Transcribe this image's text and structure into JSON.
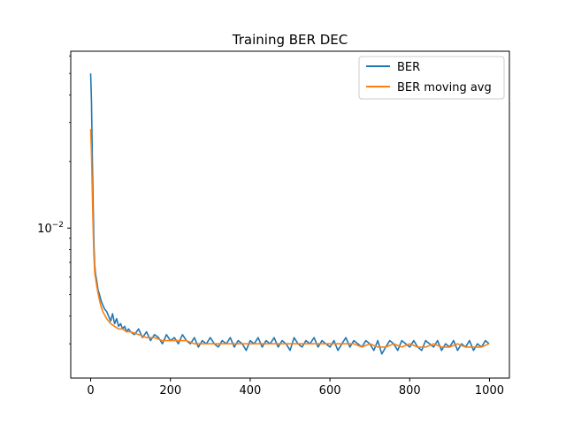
{
  "chart_data": {
    "type": "line",
    "title": "Training BER DEC",
    "xlabel": "",
    "ylabel": "",
    "xlim": [
      -50,
      1050
    ],
    "ylim": [
      0.0021,
      0.063
    ],
    "y_scale": "log",
    "x_ticks": [
      0,
      200,
      400,
      600,
      800,
      1000
    ],
    "x_tick_labels": [
      "0",
      "200",
      "400",
      "600",
      "800",
      "1000"
    ],
    "y_ticks": [
      0.01
    ],
    "y_tick_label_base": "10",
    "y_tick_label_exp": "−2",
    "grid": false,
    "legend_position": "top-right",
    "series": [
      {
        "name": "BER",
        "color": "#1f77b4",
        "x": [
          0,
          2,
          4,
          6,
          8,
          10,
          12,
          15,
          18,
          22,
          26,
          30,
          35,
          40,
          45,
          50,
          55,
          60,
          65,
          70,
          75,
          80,
          85,
          90,
          95,
          100,
          110,
          120,
          130,
          140,
          150,
          160,
          170,
          180,
          190,
          200,
          210,
          220,
          230,
          240,
          250,
          260,
          270,
          280,
          290,
          300,
          310,
          320,
          330,
          340,
          350,
          360,
          370,
          380,
          390,
          400,
          410,
          420,
          430,
          440,
          450,
          460,
          470,
          480,
          490,
          500,
          510,
          520,
          530,
          540,
          550,
          560,
          570,
          580,
          590,
          600,
          610,
          620,
          630,
          640,
          650,
          660,
          670,
          680,
          690,
          700,
          710,
          720,
          730,
          740,
          750,
          760,
          770,
          780,
          790,
          800,
          810,
          820,
          830,
          840,
          850,
          860,
          870,
          880,
          890,
          900,
          910,
          920,
          930,
          940,
          950,
          960,
          970,
          980,
          990,
          999
        ],
        "y": [
          0.05,
          0.038,
          0.022,
          0.013,
          0.0085,
          0.0068,
          0.0062,
          0.0058,
          0.0053,
          0.005,
          0.0047,
          0.0045,
          0.0043,
          0.0042,
          0.004,
          0.0038,
          0.0041,
          0.0037,
          0.0039,
          0.0036,
          0.0037,
          0.0035,
          0.0036,
          0.0034,
          0.0035,
          0.0034,
          0.0033,
          0.0035,
          0.0032,
          0.0034,
          0.0031,
          0.0033,
          0.0032,
          0.003,
          0.0033,
          0.0031,
          0.0032,
          0.003,
          0.0033,
          0.0031,
          0.003,
          0.0032,
          0.0029,
          0.0031,
          0.003,
          0.0032,
          0.003,
          0.0029,
          0.0031,
          0.003,
          0.0032,
          0.0029,
          0.0031,
          0.003,
          0.0028,
          0.0031,
          0.003,
          0.0032,
          0.0029,
          0.0031,
          0.003,
          0.0032,
          0.0029,
          0.0031,
          0.003,
          0.0028,
          0.0032,
          0.003,
          0.0029,
          0.0031,
          0.003,
          0.0032,
          0.0029,
          0.0031,
          0.003,
          0.0029,
          0.0031,
          0.0028,
          0.003,
          0.0032,
          0.0029,
          0.0031,
          0.003,
          0.0029,
          0.0031,
          0.003,
          0.0028,
          0.0031,
          0.0027,
          0.0029,
          0.0031,
          0.003,
          0.0028,
          0.0031,
          0.003,
          0.0029,
          0.0031,
          0.0029,
          0.0028,
          0.0031,
          0.003,
          0.0029,
          0.0031,
          0.0028,
          0.003,
          0.0029,
          0.0031,
          0.0028,
          0.003,
          0.0029,
          0.0031,
          0.0028,
          0.003,
          0.0029,
          0.0031,
          0.003
        ]
      },
      {
        "name": "BER moving avg",
        "color": "#ff7f0e",
        "x": [
          0,
          2,
          4,
          6,
          8,
          10,
          15,
          20,
          25,
          30,
          40,
          50,
          60,
          70,
          80,
          90,
          100,
          120,
          140,
          160,
          180,
          200,
          220,
          240,
          260,
          280,
          300,
          320,
          340,
          360,
          380,
          400,
          420,
          440,
          460,
          480,
          500,
          520,
          540,
          560,
          580,
          600,
          620,
          640,
          660,
          680,
          700,
          720,
          740,
          760,
          780,
          800,
          820,
          840,
          860,
          880,
          900,
          920,
          940,
          960,
          980,
          999
        ],
        "y": [
          0.028,
          0.022,
          0.015,
          0.01,
          0.0075,
          0.0063,
          0.0055,
          0.0049,
          0.0045,
          0.0042,
          0.0039,
          0.0037,
          0.0036,
          0.0035,
          0.0035,
          0.0034,
          0.0034,
          0.0033,
          0.0032,
          0.0032,
          0.0031,
          0.0031,
          0.0031,
          0.0031,
          0.003,
          0.003,
          0.003,
          0.003,
          0.003,
          0.003,
          0.003,
          0.003,
          0.003,
          0.003,
          0.003,
          0.003,
          0.003,
          0.003,
          0.003,
          0.003,
          0.003,
          0.003,
          0.003,
          0.003,
          0.003,
          0.0029,
          0.003,
          0.0029,
          0.0029,
          0.003,
          0.0029,
          0.003,
          0.0029,
          0.0029,
          0.003,
          0.0029,
          0.0029,
          0.003,
          0.0029,
          0.0029,
          0.0029,
          0.003
        ]
      }
    ]
  }
}
